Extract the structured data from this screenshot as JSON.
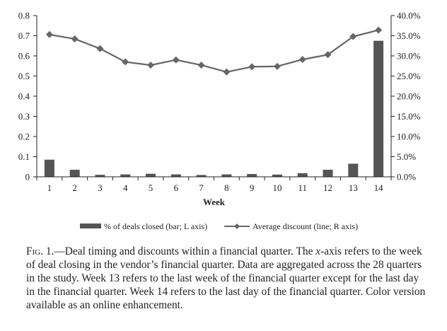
{
  "chart_data": {
    "type": "bar+line",
    "categories": [
      "1",
      "2",
      "3",
      "4",
      "5",
      "6",
      "7",
      "8",
      "9",
      "10",
      "11",
      "12",
      "13",
      "14"
    ],
    "xlabel": "Week",
    "left_axis": {
      "range": [
        0,
        0.8
      ],
      "ticks": [
        "0",
        "0.1",
        "0.2",
        "0.3",
        "0.4",
        "0.5",
        "0.6",
        "0.7",
        "0.8"
      ]
    },
    "right_axis": {
      "range": [
        0,
        40
      ],
      "ticks": [
        "0.0%",
        "5.0%",
        "10.0%",
        "15.0%",
        "20.0%",
        "25.0%",
        "30.0%",
        "35.0%",
        "40.0%"
      ]
    },
    "series": [
      {
        "name": "% of deals closed (bar; L axis)",
        "type": "bar",
        "axis": "left",
        "color": "#555555",
        "values": [
          0.085,
          0.035,
          0.01,
          0.012,
          0.015,
          0.012,
          0.009,
          0.012,
          0.014,
          0.011,
          0.018,
          0.035,
          0.065,
          0.675
        ]
      },
      {
        "name": "Average discount (line; R axis)",
        "type": "line",
        "axis": "right",
        "color": "#666666",
        "marker": "diamond",
        "values": [
          35.3,
          34.2,
          31.8,
          28.5,
          27.7,
          29.0,
          27.7,
          26.0,
          27.3,
          27.4,
          29.1,
          30.3,
          34.8,
          36.4
        ]
      }
    ],
    "legend_position": "bottom",
    "grid": false
  },
  "caption": {
    "figure_label": "Fig. 1.",
    "text_parts": [
      "—Deal timing and discounts within a financial quarter. The ",
      "x",
      "-axis refers to the week of deal closing in the vendor’s financial quarter. Data are aggregated across the 28 quarters in the study. Week 13 refers to the last week of the financial quarter except for the last day in the financial quarter. Week 14 refers to the last day of the financial quarter. Color version available as an online enhancement."
    ]
  }
}
